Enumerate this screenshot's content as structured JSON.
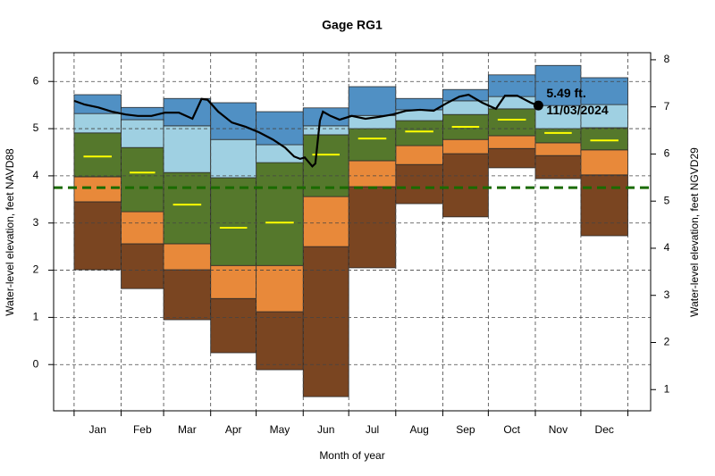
{
  "chart_data": {
    "type": "band",
    "title": "Gage RG1",
    "xlabel": "Month of year",
    "ylabel": "Water-level elevation, feet NAVD88",
    "y2label": "Water-level elevation, feet NGVD29",
    "categories": [
      "Jan",
      "Feb",
      "Mar",
      "Apr",
      "May",
      "Jun",
      "Jul",
      "Aug",
      "Sep",
      "Oct",
      "Nov",
      "Dec"
    ],
    "xlim": [
      -13.5,
      380
    ],
    "xticks": [
      0,
      31,
      59,
      90,
      120,
      151,
      181,
      212,
      243,
      273,
      304,
      334,
      365
    ],
    "ylim": [
      -0.98,
      6.61
    ],
    "yticks": [
      0,
      1,
      2,
      3,
      4,
      5,
      6
    ],
    "y2lim": [
      0.55,
      8.15
    ],
    "y2ticks": [
      1,
      2,
      3,
      4,
      5,
      6,
      7,
      8
    ],
    "grid": true,
    "levels": [
      [
        2.01,
        1.61,
        0.95,
        0.25,
        -0.11,
        -0.68,
        2.05,
        3.41,
        3.13,
        4.17,
        3.94,
        2.73
      ],
      [
        3.45,
        2.56,
        2.01,
        1.4,
        1.12,
        2.5,
        3.77,
        4.24,
        4.47,
        4.58,
        4.43,
        4.02
      ],
      [
        3.98,
        3.24,
        2.56,
        2.1,
        2.1,
        3.56,
        4.32,
        4.64,
        4.77,
        4.85,
        4.7,
        4.55
      ],
      [
        4.91,
        4.6,
        4.07,
        3.96,
        4.28,
        4.87,
        5.0,
        5.17,
        5.3,
        5.42,
        5.0,
        5.02
      ],
      [
        5.32,
        5.19,
        5.06,
        4.77,
        4.66,
        5.06,
        5.28,
        5.4,
        5.59,
        5.68,
        5.49,
        5.51
      ],
      [
        5.72,
        5.45,
        5.64,
        5.55,
        5.36,
        5.44,
        5.89,
        5.64,
        5.83,
        6.14,
        6.34,
        6.08
      ]
    ],
    "band_colors": [
      "#7a4521",
      "#e8893a",
      "#55782c",
      "#9fd0e2",
      "#5090c4"
    ],
    "median": {
      "color": "#ffff00",
      "values": [
        4.41,
        4.07,
        3.39,
        2.9,
        3.01,
        4.45,
        4.79,
        4.94,
        5.04,
        5.19,
        4.91,
        4.75
      ]
    },
    "reference_line": {
      "value": 3.75,
      "color": "#1a6b00"
    },
    "line": {
      "color": "#000000",
      "x": [
        0,
        7,
        16,
        25,
        34,
        42,
        51,
        60,
        69,
        78,
        84,
        88,
        95,
        104,
        113,
        122,
        131,
        139,
        145,
        149,
        152,
        157,
        159,
        162,
        164,
        169,
        175,
        183,
        192,
        201,
        210,
        219,
        228,
        237,
        245,
        254,
        260,
        269,
        278,
        284,
        292,
        301,
        306
      ],
      "values": [
        5.59,
        5.51,
        5.45,
        5.36,
        5.3,
        5.27,
        5.27,
        5.34,
        5.34,
        5.21,
        5.63,
        5.61,
        5.36,
        5.13,
        5.04,
        4.92,
        4.77,
        4.6,
        4.41,
        4.36,
        4.39,
        4.2,
        4.26,
        5.17,
        5.36,
        5.27,
        5.19,
        5.27,
        5.21,
        5.25,
        5.3,
        5.38,
        5.4,
        5.38,
        5.53,
        5.68,
        5.72,
        5.55,
        5.42,
        5.7,
        5.7,
        5.55,
        5.49
      ]
    },
    "point": {
      "x": 306,
      "value": 5.49,
      "value_label": "5.49 ft.",
      "date": "11/03/2024"
    }
  }
}
